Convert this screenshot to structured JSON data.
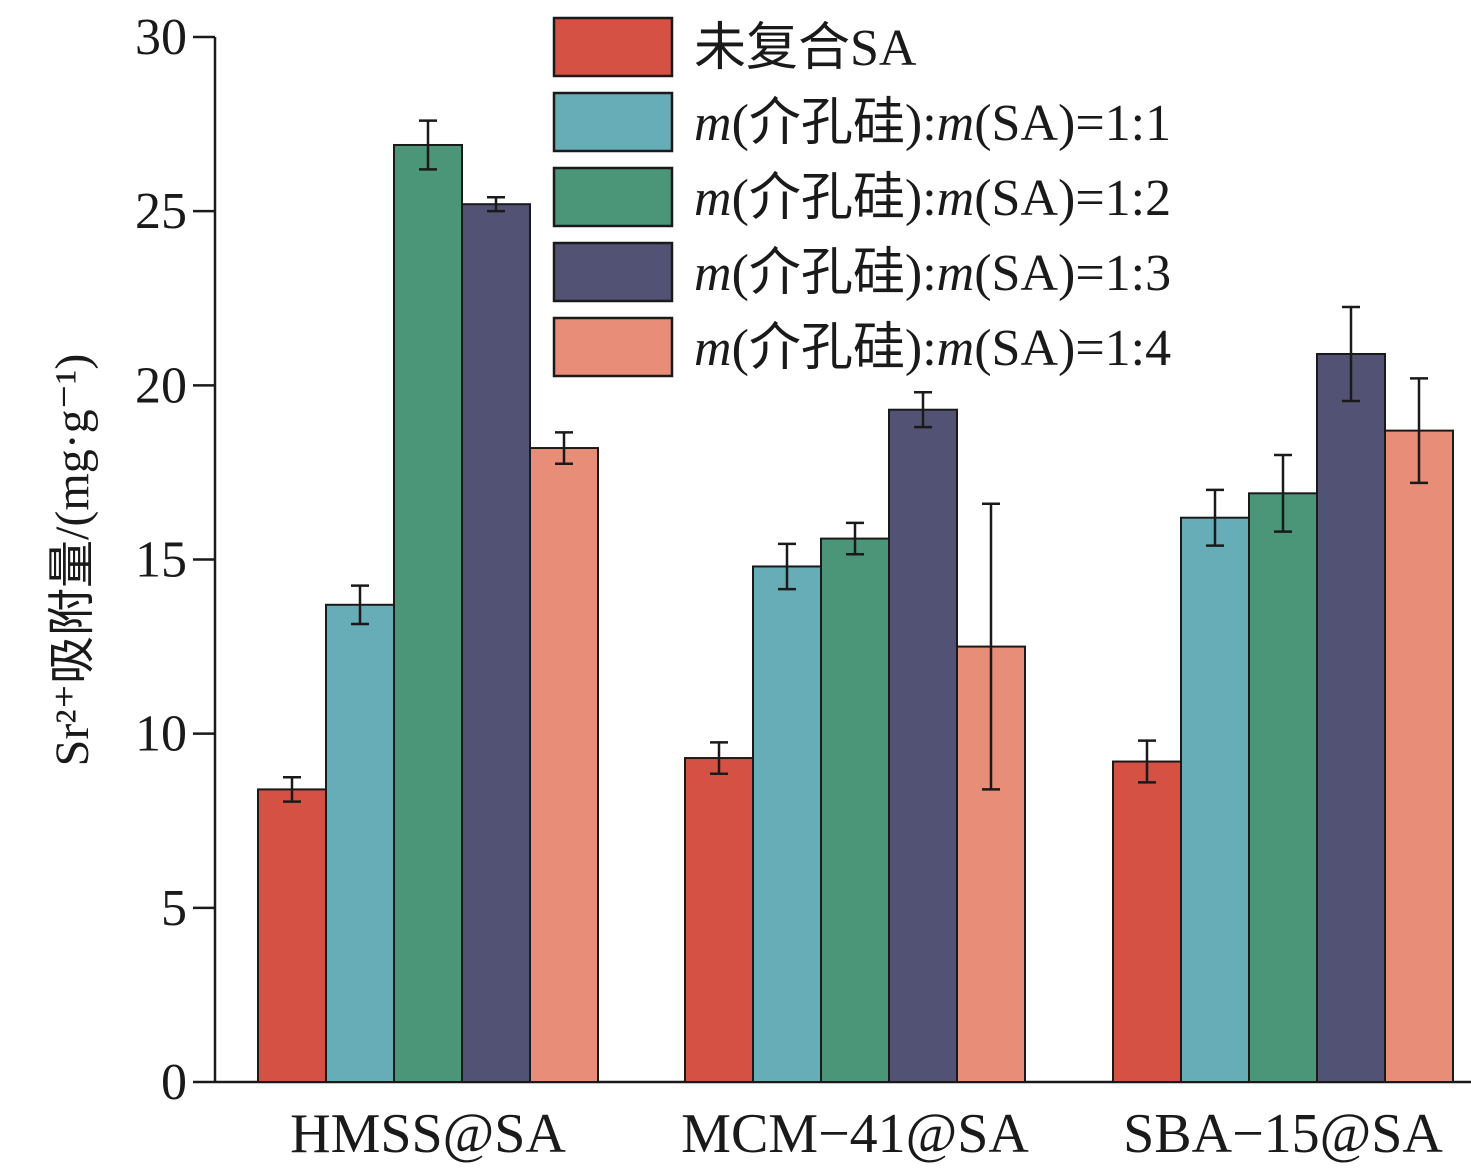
{
  "chart_data": {
    "type": "bar",
    "title": "",
    "xlabel": "",
    "ylabel": "Sr²⁺吸附量/(mg·g⁻¹)",
    "ylim": [
      0,
      30
    ],
    "yticks": [
      0,
      5,
      10,
      15,
      20,
      25,
      30
    ],
    "categories": [
      "HMSS@SA",
      "MCM-41@SA",
      "SBA-15@SA"
    ],
    "legend_position": "top-right",
    "series": [
      {
        "name": "未复合SA",
        "color": "#d55143",
        "values": [
          8.4,
          9.3,
          9.2
        ],
        "errors": [
          0.35,
          0.45,
          0.6
        ]
      },
      {
        "name": "m(介孔硅):m(SA)=1:1",
        "color": "#66adb8",
        "values": [
          13.7,
          14.8,
          16.2
        ],
        "errors": [
          0.55,
          0.65,
          0.8
        ]
      },
      {
        "name": "m(介孔硅):m(SA)=1:2",
        "color": "#4b9679",
        "values": [
          26.9,
          15.6,
          16.9
        ],
        "errors": [
          0.7,
          0.45,
          1.1
        ]
      },
      {
        "name": "m(介孔硅):m(SA)=1:3",
        "color": "#525374",
        "values": [
          25.2,
          19.3,
          20.9
        ],
        "errors": [
          0.2,
          0.5,
          1.35
        ]
      },
      {
        "name": "m(介孔硅):m(SA)=1:4",
        "color": "#e88e78",
        "values": [
          18.2,
          12.5,
          18.7
        ],
        "errors": [
          0.45,
          4.1,
          1.5
        ]
      }
    ]
  }
}
